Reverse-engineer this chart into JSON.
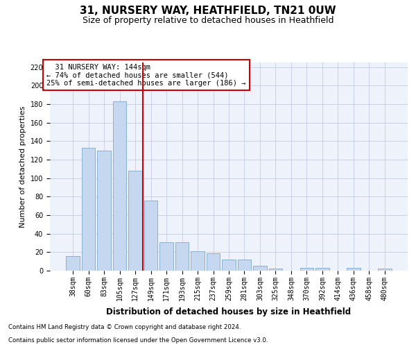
{
  "title": "31, NURSERY WAY, HEATHFIELD, TN21 0UW",
  "subtitle": "Size of property relative to detached houses in Heathfield",
  "xlabel": "Distribution of detached houses by size in Heathfield",
  "ylabel": "Number of detached properties",
  "footnote1": "Contains HM Land Registry data © Crown copyright and database right 2024.",
  "footnote2": "Contains public sector information licensed under the Open Government Licence v3.0.",
  "categories": [
    "38sqm",
    "60sqm",
    "83sqm",
    "105sqm",
    "127sqm",
    "149sqm",
    "171sqm",
    "193sqm",
    "215sqm",
    "237sqm",
    "259sqm",
    "281sqm",
    "303sqm",
    "325sqm",
    "348sqm",
    "370sqm",
    "392sqm",
    "414sqm",
    "436sqm",
    "458sqm",
    "480sqm"
  ],
  "values": [
    16,
    133,
    130,
    183,
    108,
    76,
    31,
    31,
    21,
    19,
    12,
    12,
    5,
    2,
    0,
    3,
    3,
    0,
    3,
    0,
    2
  ],
  "bar_color": "#c5d8f0",
  "bar_edge_color": "#7aaad0",
  "vline_x": 4.5,
  "vline_color": "#cc0000",
  "annotation_text": "  31 NURSERY WAY: 144sqm\n← 74% of detached houses are smaller (544)\n25% of semi-detached houses are larger (186) →",
  "annotation_box_color": "#cc0000",
  "annotation_fontsize": 7.5,
  "ylim": [
    0,
    225
  ],
  "yticks": [
    0,
    20,
    40,
    60,
    80,
    100,
    120,
    140,
    160,
    180,
    200,
    220
  ],
  "plot_bg_color": "#eef2fb",
  "grid_color": "#c8d0e8",
  "title_fontsize": 11,
  "subtitle_fontsize": 9,
  "xlabel_fontsize": 8.5,
  "ylabel_fontsize": 8,
  "tick_fontsize": 7
}
